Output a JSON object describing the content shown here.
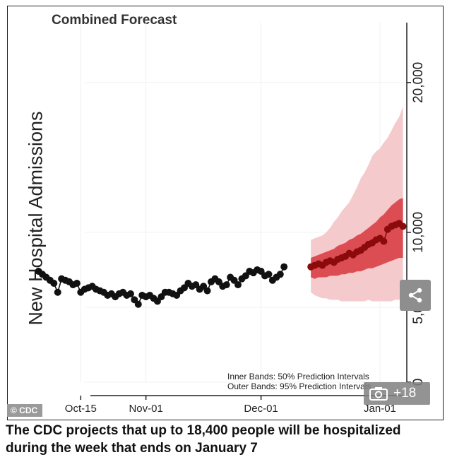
{
  "caption": "The CDC projects that up to 18,400 people will be hospitalized during the week that ends on January 7",
  "credit": "© CDC",
  "gallery_count": "+18",
  "icons": {
    "share": "share-icon",
    "gallery": "camera-icon"
  },
  "colors": {
    "observed": "#111111",
    "forecast_points": "#8b0a0a",
    "inner_band": "#d7373d",
    "outer_band": "#f3c4c6"
  },
  "chart_data": {
    "type": "line",
    "title": "Combined Forecast",
    "ylabel": "New Hospital Admissions",
    "xlabel": "",
    "y_axis_position": "right",
    "grid": true,
    "ylim": [
      0,
      24000
    ],
    "yticks": [
      {
        "value": 0,
        "label": "0"
      },
      {
        "value": 5000,
        "label": "5,000"
      },
      {
        "value": 10000,
        "label": "10,000"
      },
      {
        "value": 20000,
        "label": "20,000"
      }
    ],
    "xlim": [
      "2022-10-05",
      "2023-01-08"
    ],
    "xticks": [
      {
        "date": "2022-10-15",
        "label": "Oct-15"
      },
      {
        "date": "2022-11-01",
        "label": "Nov-01"
      },
      {
        "date": "2022-12-01",
        "label": "Dec-01"
      },
      {
        "date": "2023-01-01",
        "label": "Jan-01"
      }
    ],
    "legend": {
      "placement": "bottom-right",
      "lines": [
        "Inner Bands: 50% Prediction Intervals",
        "Outer Bands: 95% Prediction Intervals"
      ]
    },
    "observed": {
      "x": [
        "2022-10-04",
        "2022-10-05",
        "2022-10-06",
        "2022-10-07",
        "2022-10-08",
        "2022-10-09",
        "2022-10-10",
        "2022-10-11",
        "2022-10-12",
        "2022-10-13",
        "2022-10-14",
        "2022-10-15",
        "2022-10-16",
        "2022-10-17",
        "2022-10-18",
        "2022-10-19",
        "2022-10-20",
        "2022-10-21",
        "2022-10-22",
        "2022-10-23",
        "2022-10-24",
        "2022-10-25",
        "2022-10-26",
        "2022-10-27",
        "2022-10-28",
        "2022-10-29",
        "2022-10-30",
        "2022-10-31",
        "2022-11-01",
        "2022-11-02",
        "2022-11-03",
        "2022-11-04",
        "2022-11-05",
        "2022-11-06",
        "2022-11-07",
        "2022-11-08",
        "2022-11-09",
        "2022-11-10",
        "2022-11-11",
        "2022-11-12",
        "2022-11-13",
        "2022-11-14",
        "2022-11-15",
        "2022-11-16",
        "2022-11-17",
        "2022-11-18",
        "2022-11-19",
        "2022-11-20",
        "2022-11-21",
        "2022-11-22",
        "2022-11-23",
        "2022-11-24",
        "2022-11-25",
        "2022-11-26",
        "2022-11-27",
        "2022-11-28",
        "2022-11-29",
        "2022-11-30",
        "2022-12-01",
        "2022-12-02",
        "2022-12-03",
        "2022-12-04",
        "2022-12-05",
        "2022-12-06",
        "2022-12-07"
      ],
      "y": [
        7400,
        7200,
        7000,
        6800,
        6600,
        6000,
        6900,
        6800,
        6700,
        6500,
        6600,
        6000,
        6200,
        6300,
        6400,
        6200,
        6100,
        6000,
        5800,
        5900,
        5700,
        5900,
        6000,
        5800,
        5900,
        5500,
        5200,
        5800,
        5700,
        5800,
        5600,
        5400,
        5700,
        6000,
        6000,
        5900,
        5800,
        6100,
        6300,
        6600,
        6400,
        6500,
        6200,
        6400,
        6100,
        6700,
        6900,
        6700,
        6400,
        6500,
        7000,
        6800,
        6500,
        6900,
        7100,
        7400,
        7300,
        7500,
        7400,
        7100,
        7200,
        6800,
        7000,
        7200,
        7700
      ]
    },
    "forecast": {
      "x": [
        "2022-12-14",
        "2022-12-15",
        "2022-12-16",
        "2022-12-17",
        "2022-12-18",
        "2022-12-19",
        "2022-12-20",
        "2022-12-21",
        "2022-12-22",
        "2022-12-23",
        "2022-12-24",
        "2022-12-25",
        "2022-12-26",
        "2022-12-27",
        "2022-12-28",
        "2022-12-29",
        "2022-12-30",
        "2022-12-31",
        "2023-01-01",
        "2023-01-02",
        "2023-01-03",
        "2023-01-04",
        "2023-01-05",
        "2023-01-06",
        "2023-01-07"
      ],
      "y": [
        7700,
        7800,
        7900,
        7800,
        8000,
        8100,
        8000,
        8200,
        8300,
        8400,
        8600,
        8500,
        8700,
        8800,
        9000,
        9200,
        9300,
        9500,
        9600,
        9400,
        10200,
        10400,
        10500,
        10600,
        10400
      ],
      "inner_lower": [
        7000,
        6900,
        7000,
        7000,
        7000,
        7100,
        7100,
        7100,
        7200,
        7200,
        7300,
        7300,
        7400,
        7400,
        7500,
        7600,
        7600,
        7700,
        7800,
        7900,
        8000,
        8100,
        8200,
        8300,
        8300
      ],
      "inner_upper": [
        8300,
        8400,
        8500,
        8600,
        8700,
        8800,
        8900,
        9100,
        9200,
        9300,
        9500,
        9600,
        9800,
        9900,
        10100,
        10300,
        10500,
        10700,
        11000,
        11200,
        11500,
        11800,
        12000,
        12200,
        12300
      ],
      "outer_lower": [
        6000,
        5800,
        5700,
        5600,
        5600,
        5500,
        5500,
        5500,
        5400,
        5400,
        5400,
        5400,
        5400,
        5400,
        5400,
        5500,
        5400,
        5400,
        5400,
        5400,
        5400,
        5400,
        5500,
        5500,
        5500
      ],
      "outer_upper": [
        9500,
        9600,
        9700,
        9800,
        10000,
        10300,
        10700,
        11000,
        11400,
        11700,
        12000,
        12500,
        13000,
        13600,
        14000,
        14500,
        15100,
        15400,
        15600,
        16000,
        16300,
        16800,
        17300,
        17700,
        18400
      ]
    }
  }
}
